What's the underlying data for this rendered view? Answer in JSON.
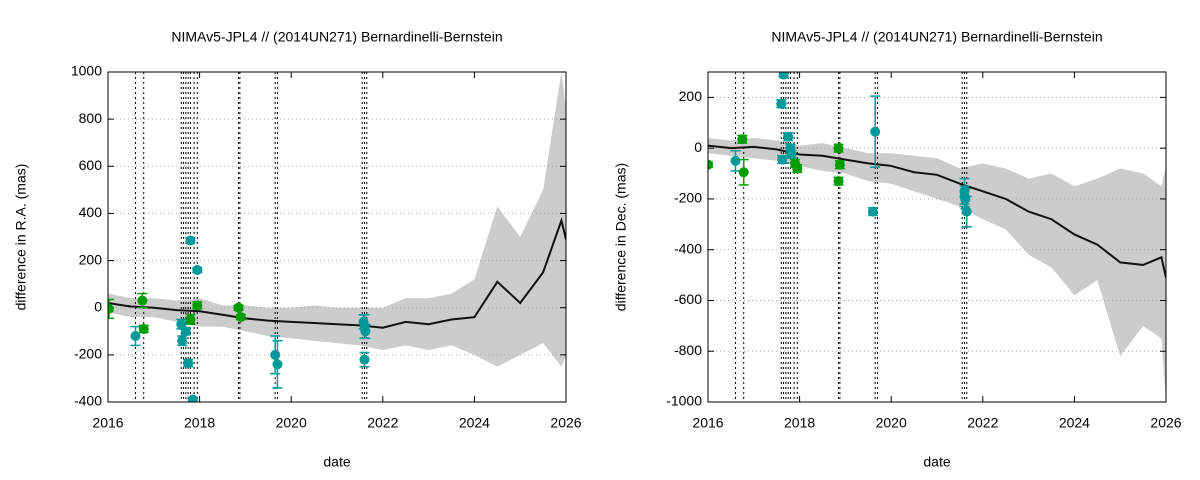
{
  "chart_data": [
    {
      "type": "model-vs-observations",
      "title": "NIMAv5-JPL4 // (2014UN271) Bernardinelli-Bernstein",
      "xlabel": "date",
      "ylabel": "difference in R.A. (mas)",
      "xlim": [
        2016,
        2026
      ],
      "xticks": [
        2016,
        2018,
        2020,
        2022,
        2024,
        2026
      ],
      "ylim": [
        -400,
        1000
      ],
      "yticks": [
        -400,
        -200,
        0,
        200,
        400,
        600,
        800,
        1000
      ],
      "grid": true,
      "model": {
        "x": [
          2016,
          2016.5,
          2017,
          2017.5,
          2018,
          2018.5,
          2019,
          2019.5,
          2020,
          2020.5,
          2021,
          2021.5,
          2022,
          2022.5,
          2023,
          2023.5,
          2024,
          2024.5,
          2025,
          2025.5,
          2025.9,
          2026
        ],
        "values": [
          20,
          5,
          0,
          -10,
          -15,
          -30,
          -45,
          -55,
          -60,
          -65,
          -70,
          -75,
          -85,
          -60,
          -70,
          -50,
          -40,
          110,
          20,
          150,
          370,
          290
        ],
        "upper": [
          60,
          40,
          40,
          30,
          40,
          10,
          10,
          0,
          0,
          10,
          0,
          0,
          0,
          40,
          40,
          60,
          120,
          430,
          300,
          500,
          1000,
          850
        ],
        "lower": [
          -20,
          -40,
          -40,
          -60,
          -80,
          -80,
          -100,
          -120,
          -130,
          -140,
          -150,
          -160,
          -180,
          -160,
          -180,
          -160,
          -200,
          -250,
          -200,
          -150,
          -250,
          -200
        ],
        "color": "#111111",
        "band_color": "#cccccc"
      },
      "obs_dates": [
        2016.0,
        2016.6,
        2016.78,
        2017.6,
        2017.65,
        2017.7,
        2017.75,
        2017.8,
        2017.88,
        2017.95,
        2018.85,
        2018.88,
        2019.65,
        2019.7,
        2021.55,
        2021.6,
        2021.65
      ],
      "points": [
        {
          "color": "#009a9a",
          "x": [
            2016.6,
            2017.6,
            2017.62,
            2017.7,
            2017.75,
            2017.8,
            2017.85,
            2017.95,
            2019.65,
            2019.7,
            2021.6,
            2021.6,
            2021.62,
            2021.58
          ],
          "values": [
            -120,
            -70,
            -140,
            -100,
            -235,
            285,
            -390,
            160,
            -200,
            -240,
            -220,
            -80,
            -100,
            -60
          ],
          "errors": [
            40,
            20,
            20,
            15,
            15,
            10,
            10,
            10,
            80,
            100,
            30,
            50,
            30,
            30
          ]
        },
        {
          "color": "#009e00",
          "x": [
            2016.02,
            2016.75,
            2016.78,
            2017.8,
            2017.95,
            2018.85,
            2018.9
          ],
          "values": [
            -5,
            30,
            -90,
            -50,
            10,
            0,
            -40
          ],
          "errors": [
            40,
            30,
            15,
            20,
            15,
            10,
            10
          ]
        }
      ]
    },
    {
      "type": "model-vs-observations",
      "title": "NIMAv5-JPL4 // (2014UN271) Bernardinelli-Bernstein",
      "xlabel": "date",
      "ylabel": "difference in Dec. (mas)",
      "xlim": [
        2016,
        2026
      ],
      "xticks": [
        2016,
        2018,
        2020,
        2022,
        2024,
        2026
      ],
      "ylim": [
        -1000,
        300
      ],
      "yticks": [
        -1000,
        -800,
        -600,
        -400,
        -200,
        0,
        200
      ],
      "grid": true,
      "model": {
        "x": [
          2016,
          2016.5,
          2017,
          2017.5,
          2018,
          2018.5,
          2019,
          2019.5,
          2020,
          2020.5,
          2021,
          2021.5,
          2022,
          2022.5,
          2023,
          2023.5,
          2024,
          2024.5,
          2025,
          2025.5,
          2025.9,
          2026
        ],
        "values": [
          10,
          0,
          5,
          -5,
          -25,
          -30,
          -45,
          -60,
          -70,
          -95,
          -105,
          -140,
          -170,
          -200,
          -250,
          -280,
          -340,
          -380,
          -450,
          -460,
          -430,
          -510
        ],
        "upper": [
          40,
          30,
          40,
          30,
          10,
          20,
          0,
          -20,
          -20,
          -30,
          -40,
          -80,
          -60,
          -80,
          -120,
          -100,
          -150,
          -120,
          -80,
          -100,
          -150,
          -70
        ],
        "lower": [
          -20,
          -30,
          -40,
          -50,
          -70,
          -90,
          -100,
          -130,
          -140,
          -170,
          -200,
          -230,
          -280,
          -320,
          -420,
          -470,
          -580,
          -520,
          -820,
          -700,
          -750,
          -1000
        ],
        "color": "#111111",
        "band_color": "#cccccc"
      },
      "obs_dates": [
        2016.0,
        2016.6,
        2016.78,
        2017.6,
        2017.65,
        2017.7,
        2017.75,
        2017.8,
        2017.88,
        2017.95,
        2018.85,
        2018.88,
        2019.65,
        2019.7,
        2021.55,
        2021.6,
        2021.65
      ],
      "points": [
        {
          "color": "#009a9a",
          "x": [
            2016.6,
            2017.6,
            2017.65,
            2017.62,
            2017.75,
            2017.8,
            2017.82,
            2019.65,
            2019.6,
            2021.6,
            2021.6,
            2021.62,
            2021.65
          ],
          "values": [
            -50,
            175,
            290,
            -45,
            45,
            0,
            -25,
            65,
            -250,
            -170,
            -190,
            -200,
            -250
          ],
          "errors": [
            40,
            15,
            10,
            15,
            15,
            15,
            15,
            140,
            15,
            50,
            40,
            40,
            60
          ]
        },
        {
          "color": "#009e00",
          "x": [
            2016.0,
            2016.75,
            2016.78,
            2017.9,
            2017.95,
            2018.85,
            2018.88,
            2018.85
          ],
          "values": [
            -65,
            35,
            -95,
            -60,
            -80,
            0,
            -65,
            -130
          ],
          "errors": [
            10,
            15,
            50,
            15,
            15,
            15,
            15,
            15
          ]
        }
      ]
    }
  ]
}
